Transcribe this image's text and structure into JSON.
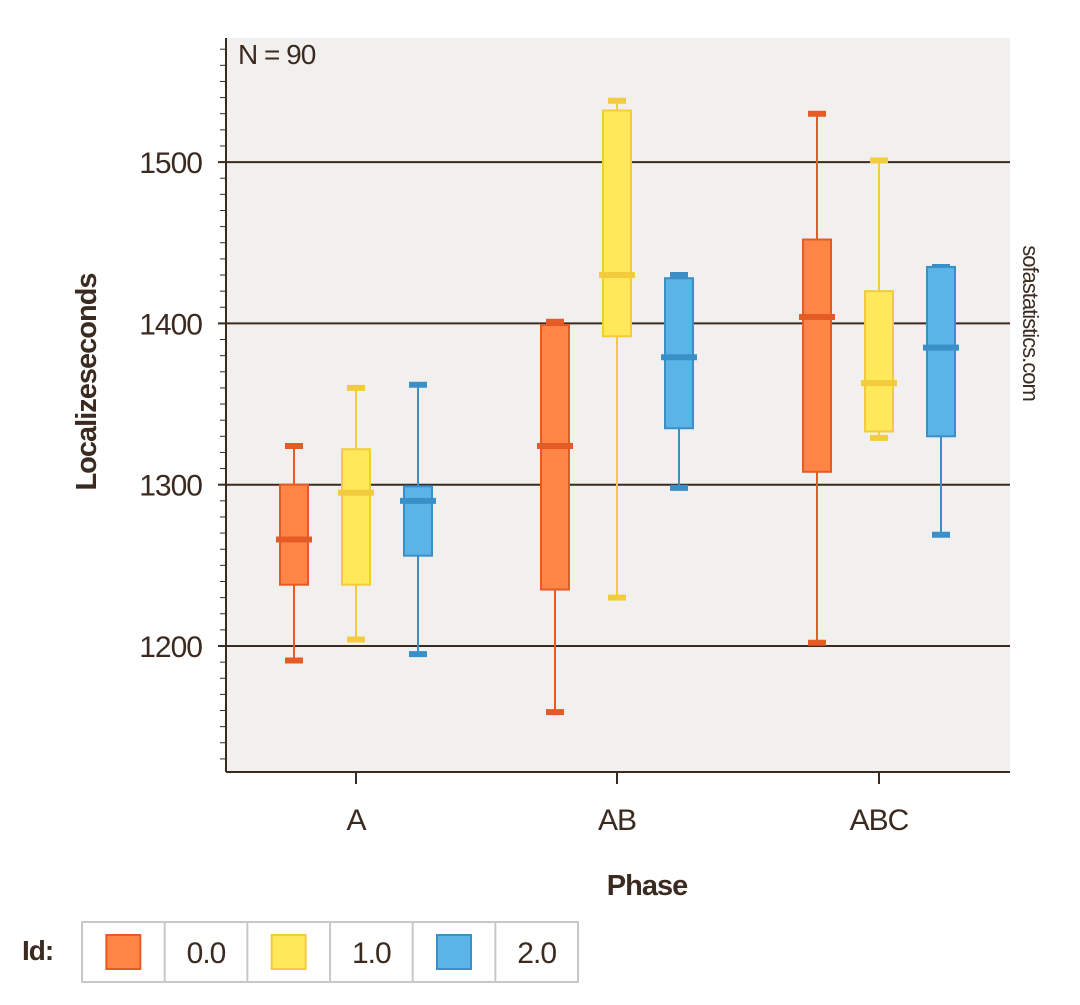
{
  "chart_data": {
    "type": "boxplot",
    "xlabel": "Phase",
    "ylabel": "Localizeseconds",
    "annotation": "N = 90",
    "watermark": "sofastatistics.com",
    "ylim": [
      1125,
      1580
    ],
    "yticks": [
      1200,
      1300,
      1400,
      1500
    ],
    "categories": [
      "A",
      "AB",
      "ABC"
    ],
    "legend": {
      "title": "Id:",
      "placement": "bottom-left"
    },
    "grid": true,
    "series": [
      {
        "name": "0.0",
        "fill": "#ff8544",
        "stroke": "#e55b26",
        "boxes": [
          {
            "whislo": 1191,
            "q1": 1238,
            "med": 1266,
            "q3": 1300,
            "whishi": 1324
          },
          {
            "whislo": 1159,
            "q1": 1235,
            "med": 1324,
            "q3": 1399,
            "whishi": 1401
          },
          {
            "whislo": 1202,
            "q1": 1308,
            "med": 1404,
            "q3": 1452,
            "whishi": 1530
          }
        ]
      },
      {
        "name": "1.0",
        "fill": "#ffe95b",
        "stroke": "#f2cc3c",
        "boxes": [
          {
            "whislo": 1204,
            "q1": 1238,
            "med": 1295,
            "q3": 1322,
            "whishi": 1360
          },
          {
            "whislo": 1230,
            "q1": 1392,
            "med": 1430,
            "q3": 1532,
            "whishi": 1538
          },
          {
            "whislo": 1329,
            "q1": 1333,
            "med": 1363,
            "q3": 1420,
            "whishi": 1501
          }
        ]
      },
      {
        "name": "2.0",
        "fill": "#5ab4e8",
        "stroke": "#3b8fc7",
        "boxes": [
          {
            "whislo": 1195,
            "q1": 1256,
            "med": 1290,
            "q3": 1299,
            "whishi": 1362
          },
          {
            "whislo": 1298,
            "q1": 1335,
            "med": 1379,
            "q3": 1428,
            "whishi": 1430
          },
          {
            "whislo": 1269,
            "q1": 1330,
            "med": 1385,
            "q3": 1435,
            "whishi": 1435
          }
        ]
      }
    ]
  }
}
